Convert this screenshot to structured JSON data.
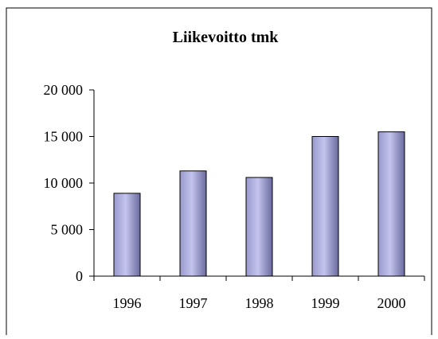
{
  "chart_data": {
    "type": "bar",
    "title": "Liikevoitto tmk",
    "xlabel": "",
    "ylabel": "",
    "categories": [
      "1996",
      "1997",
      "1998",
      "1999",
      "2000"
    ],
    "values": [
      8900,
      11300,
      10600,
      15000,
      15500
    ],
    "ylim": [
      0,
      20000
    ],
    "yticks": [
      0,
      5000,
      10000,
      15000,
      20000
    ],
    "ytick_labels": [
      "0",
      "5 000",
      "10 000",
      "15 000",
      "20 000"
    ],
    "grid": false,
    "legend": "none",
    "colors": {
      "bar_fill_light": "#c4c4ee",
      "bar_fill_mid": "#9999cc",
      "bar_fill_dark": "#6a6a9e",
      "bar_stroke": "#000000",
      "axis": "#000000",
      "frame": "#000000",
      "background": "#ffffff"
    }
  }
}
